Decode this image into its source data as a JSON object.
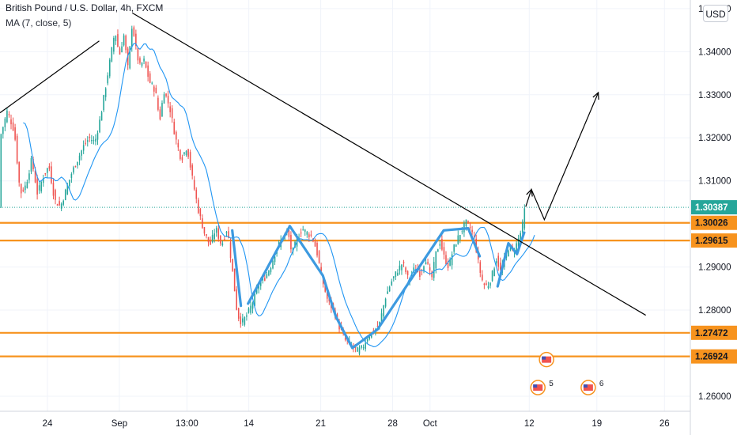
{
  "header": {
    "symbol": "British Pound / U.S. Dollar, 4h, FXCM",
    "indicator": "MA (7, close, 5)"
  },
  "currency_button": "USD",
  "colors": {
    "up": "#26a69a",
    "down": "#ef5350",
    "ma": "#2196f3",
    "zigzag": "#3d9ae0",
    "level": "#f7931e",
    "trend": "#000000",
    "last_price": "#26a69a"
  },
  "chart_data": {
    "type": "candlestick",
    "timeframe": "4h",
    "ylim": [
      1.2565,
      1.352
    ],
    "xlim": [
      0,
      48
    ],
    "y_ticks": [
      {
        "value": 1.35,
        "label": "1.35000"
      },
      {
        "value": 1.34,
        "label": "1.34000"
      },
      {
        "value": 1.33,
        "label": "1.33000"
      },
      {
        "value": 1.32,
        "label": "1.32000"
      },
      {
        "value": 1.31,
        "label": "1.31000"
      },
      {
        "value": 1.29,
        "label": "1.29000"
      },
      {
        "value": 1.28,
        "label": "1.28000"
      },
      {
        "value": 1.26,
        "label": "1.26000"
      }
    ],
    "x_ticks": [
      {
        "x": 3.3,
        "label": "24"
      },
      {
        "x": 8.3,
        "label": "Sep"
      },
      {
        "x": 13.0,
        "label": "13:00"
      },
      {
        "x": 17.3,
        "label": "14"
      },
      {
        "x": 22.3,
        "label": "21"
      },
      {
        "x": 27.3,
        "label": "28"
      },
      {
        "x": 29.9,
        "label": "Oct"
      },
      {
        "x": 36.8,
        "label": "12"
      },
      {
        "x": 41.5,
        "label": "19"
      },
      {
        "x": 46.2,
        "label": "26"
      }
    ],
    "price_levels": [
      {
        "value": 1.30026,
        "label": "1.30026"
      },
      {
        "value": 1.29615,
        "label": "1.29615"
      },
      {
        "value": 1.27472,
        "label": "1.27472"
      },
      {
        "value": 1.26924,
        "label": "1.26924"
      }
    ],
    "last_price": {
      "value": 1.30387,
      "label": "1.30387"
    },
    "price_path": [
      [
        0.0,
        1.32
      ],
      [
        0.5,
        1.3262
      ],
      [
        1.0,
        1.3215
      ],
      [
        1.4,
        1.307
      ],
      [
        1.8,
        1.309
      ],
      [
        2.2,
        1.315
      ],
      [
        2.6,
        1.307
      ],
      [
        3.0,
        1.311
      ],
      [
        3.4,
        1.3135
      ],
      [
        3.8,
        1.3055
      ],
      [
        4.2,
        1.304
      ],
      [
        4.6,
        1.308
      ],
      [
        5.0,
        1.312
      ],
      [
        5.4,
        1.315
      ],
      [
        5.8,
        1.318
      ],
      [
        6.2,
        1.32
      ],
      [
        6.6,
        1.319
      ],
      [
        7.0,
        1.325
      ],
      [
        7.4,
        1.333
      ],
      [
        7.7,
        1.339
      ],
      [
        8.0,
        1.345
      ],
      [
        8.3,
        1.339
      ],
      [
        8.6,
        1.344
      ],
      [
        8.9,
        1.336
      ],
      [
        9.2,
        1.347
      ],
      [
        9.4,
        1.3415
      ],
      [
        9.7,
        1.3365
      ],
      [
        10.0,
        1.338
      ],
      [
        10.4,
        1.333
      ],
      [
        10.8,
        1.331
      ],
      [
        11.1,
        1.324
      ],
      [
        11.4,
        1.331
      ],
      [
        11.8,
        1.327
      ],
      [
        12.2,
        1.32
      ],
      [
        12.6,
        1.315
      ],
      [
        13.0,
        1.318
      ],
      [
        13.4,
        1.31
      ],
      [
        13.8,
        1.303
      ],
      [
        14.2,
        1.298
      ],
      [
        14.6,
        1.295
      ],
      [
        15.0,
        1.299
      ],
      [
        15.4,
        1.295
      ],
      [
        15.8,
        1.299
      ],
      [
        16.2,
        1.288
      ],
      [
        16.5,
        1.279
      ],
      [
        16.8,
        1.277
      ],
      [
        17.2,
        1.279
      ],
      [
        17.6,
        1.282
      ],
      [
        18.0,
        1.286
      ],
      [
        18.4,
        1.2875
      ],
      [
        18.8,
        1.29
      ],
      [
        19.2,
        1.294
      ],
      [
        19.6,
        1.2965
      ],
      [
        20.0,
        1.2985
      ],
      [
        20.3,
        1.293
      ],
      [
        20.6,
        1.296
      ],
      [
        21.0,
        1.299
      ],
      [
        21.3,
        1.298
      ],
      [
        21.7,
        1.297
      ],
      [
        22.0,
        1.294
      ],
      [
        22.4,
        1.287
      ],
      [
        22.8,
        1.282
      ],
      [
        23.2,
        1.28
      ],
      [
        23.6,
        1.276
      ],
      [
        24.0,
        1.273
      ],
      [
        24.4,
        1.272
      ],
      [
        24.8,
        1.2705
      ],
      [
        25.2,
        1.2712
      ],
      [
        25.6,
        1.274
      ],
      [
        26.0,
        1.275
      ],
      [
        26.4,
        1.277
      ],
      [
        26.8,
        1.283
      ],
      [
        27.2,
        1.2865
      ],
      [
        27.6,
        1.289
      ],
      [
        28.0,
        1.291
      ],
      [
        28.4,
        1.287
      ],
      [
        28.8,
        1.2895
      ],
      [
        29.2,
        1.2885
      ],
      [
        29.6,
        1.292
      ],
      [
        30.0,
        1.287
      ],
      [
        30.3,
        1.293
      ],
      [
        30.6,
        1.296
      ],
      [
        30.9,
        1.292
      ],
      [
        31.2,
        1.29
      ],
      [
        31.5,
        1.294
      ],
      [
        31.8,
        1.2965
      ],
      [
        32.1,
        1.2985
      ],
      [
        32.4,
        1.3003
      ],
      [
        32.7,
        1.299
      ],
      [
        33.0,
        1.2965
      ],
      [
        33.3,
        1.29
      ],
      [
        33.6,
        1.286
      ],
      [
        33.9,
        1.2855
      ],
      [
        34.2,
        1.288
      ],
      [
        34.5,
        1.292
      ],
      [
        34.8,
        1.289
      ],
      [
        35.1,
        1.292
      ],
      [
        35.4,
        1.295
      ],
      [
        35.7,
        1.2935
      ],
      [
        36.0,
        1.296
      ],
      [
        36.3,
        1.299
      ],
      [
        36.5,
        1.3039
      ]
    ],
    "trend_lines": [
      {
        "from": [
          0.0,
          1.3258
        ],
        "to": [
          6.9,
          1.3425
        ]
      },
      {
        "from": [
          9.2,
          1.349
        ],
        "to": [
          44.9,
          1.2788
        ]
      }
    ],
    "zigzag_segments": [
      [
        [
          16.15,
          1.2985
        ],
        [
          16.75,
          1.281
        ]
      ],
      [
        [
          17.25,
          1.2815
        ],
        [
          20.15,
          1.2995
        ],
        [
          22.45,
          1.288
        ],
        [
          23.35,
          1.2785
        ],
        [
          24.5,
          1.2712
        ],
        [
          26.25,
          1.2755
        ],
        [
          30.85,
          1.2985
        ],
        [
          32.55,
          1.299
        ],
        [
          33.35,
          1.2925
        ]
      ],
      [
        [
          34.6,
          1.2855
        ],
        [
          35.35,
          1.2955
        ],
        [
          35.95,
          1.293
        ],
        [
          36.45,
          1.298
        ]
      ]
    ],
    "projection": [
      [
        36.55,
        1.304
      ],
      [
        36.95,
        1.308
      ],
      [
        37.85,
        1.301
      ],
      [
        41.6,
        1.3305
      ]
    ],
    "events": [
      {
        "x": 38.0,
        "y": 1.2685,
        "count": ""
      },
      {
        "x": 37.4,
        "y": 1.262,
        "count": "5"
      },
      {
        "x": 40.9,
        "y": 1.262,
        "count": "6"
      }
    ]
  }
}
